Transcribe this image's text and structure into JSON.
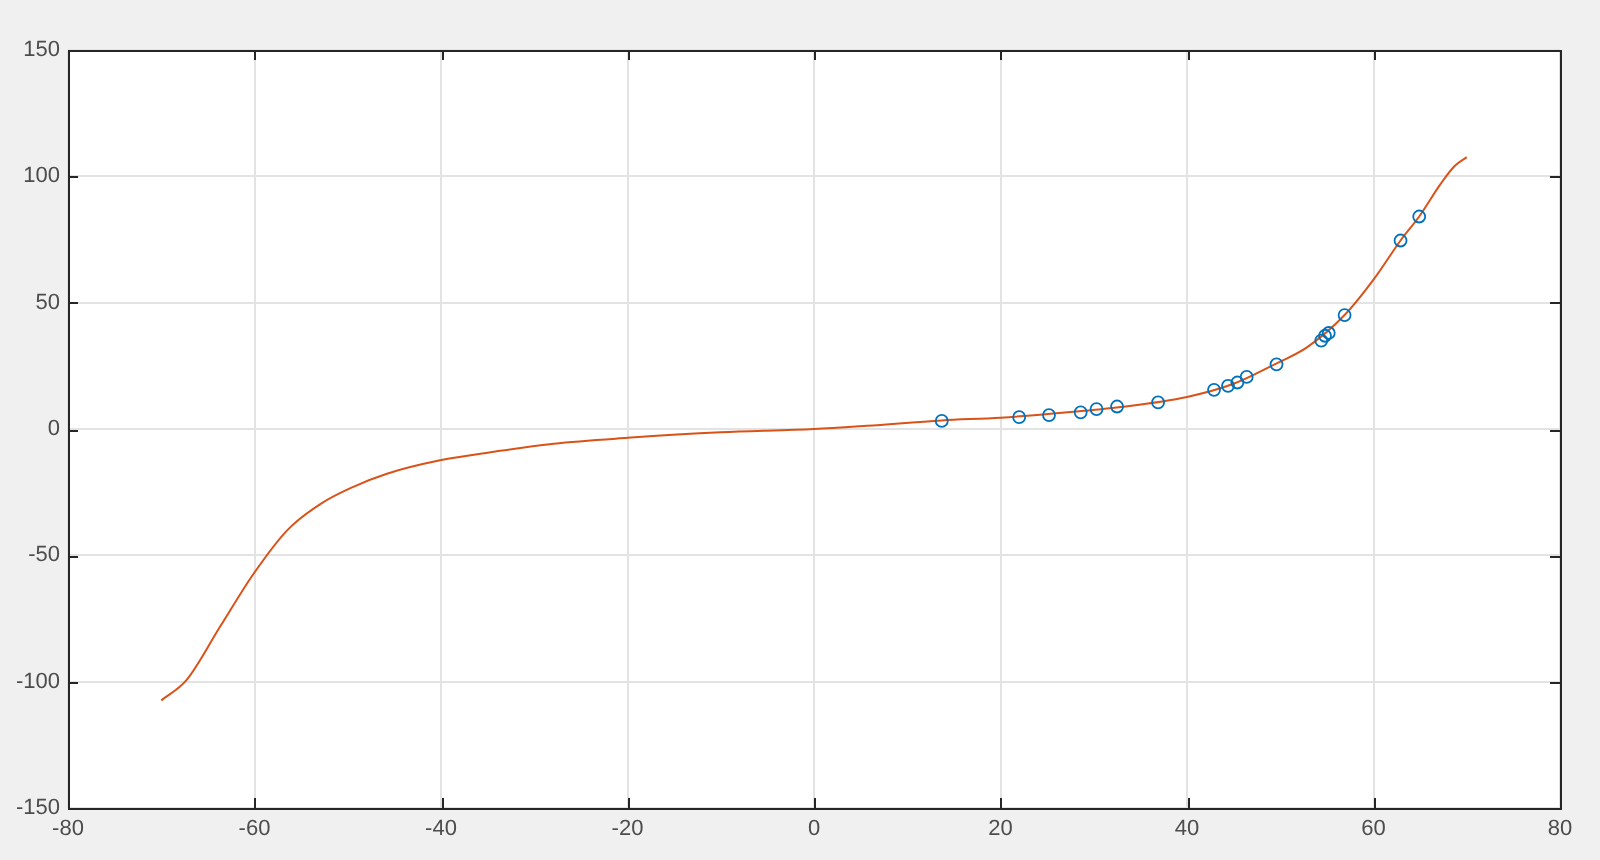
{
  "chart_data": {
    "type": "scatter",
    "xlim": [
      -80,
      80
    ],
    "ylim": [
      -150,
      150
    ],
    "xticks": [
      -80,
      -60,
      -40,
      -20,
      0,
      20,
      40,
      60,
      80
    ],
    "yticks": [
      -150,
      -100,
      -50,
      0,
      50,
      100,
      150
    ],
    "grid": true,
    "series": [
      {
        "color": "#0072bd",
        "marker": "circle",
        "x": [
          13.7,
          22.0,
          25.2,
          28.6,
          30.3,
          32.5,
          36.9,
          42.9,
          44.4,
          45.4,
          46.4,
          49.6,
          54.4,
          54.8,
          55.2,
          56.9,
          62.9,
          64.9
        ],
        "values": [
          3.2,
          4.7,
          5.5,
          6.6,
          7.9,
          8.9,
          10.5,
          15.5,
          17.1,
          18.4,
          20.6,
          25.6,
          35.0,
          36.9,
          38.0,
          45.1,
          74.6,
          84.1
        ]
      },
      {
        "type": "line",
        "color": "#d95319",
        "marker": "none",
        "x": [
          -70,
          -67.3,
          -63.7,
          -60.1,
          -56.5,
          -52.9,
          -49.4,
          -45.8,
          -40.1,
          -34.3,
          -27.9,
          -20,
          -10,
          0,
          5.7,
          13.7,
          20,
          27.2,
          32.9,
          40,
          45,
          49.4,
          52.9,
          56.9,
          60.1,
          62.9,
          64.9,
          67.2,
          68.7,
          70
        ],
        "values": [
          -107.4,
          -99.4,
          -78.3,
          -57.3,
          -40.1,
          -29.6,
          -22.9,
          -17.7,
          -12.4,
          -9.0,
          -5.8,
          -3.5,
          -1.3,
          0,
          1.3,
          3.4,
          4.5,
          6.6,
          8.7,
          12.7,
          17.9,
          25.6,
          32.4,
          45.1,
          59.6,
          74.6,
          84.1,
          97.0,
          104.1,
          107.6
        ]
      }
    ]
  }
}
